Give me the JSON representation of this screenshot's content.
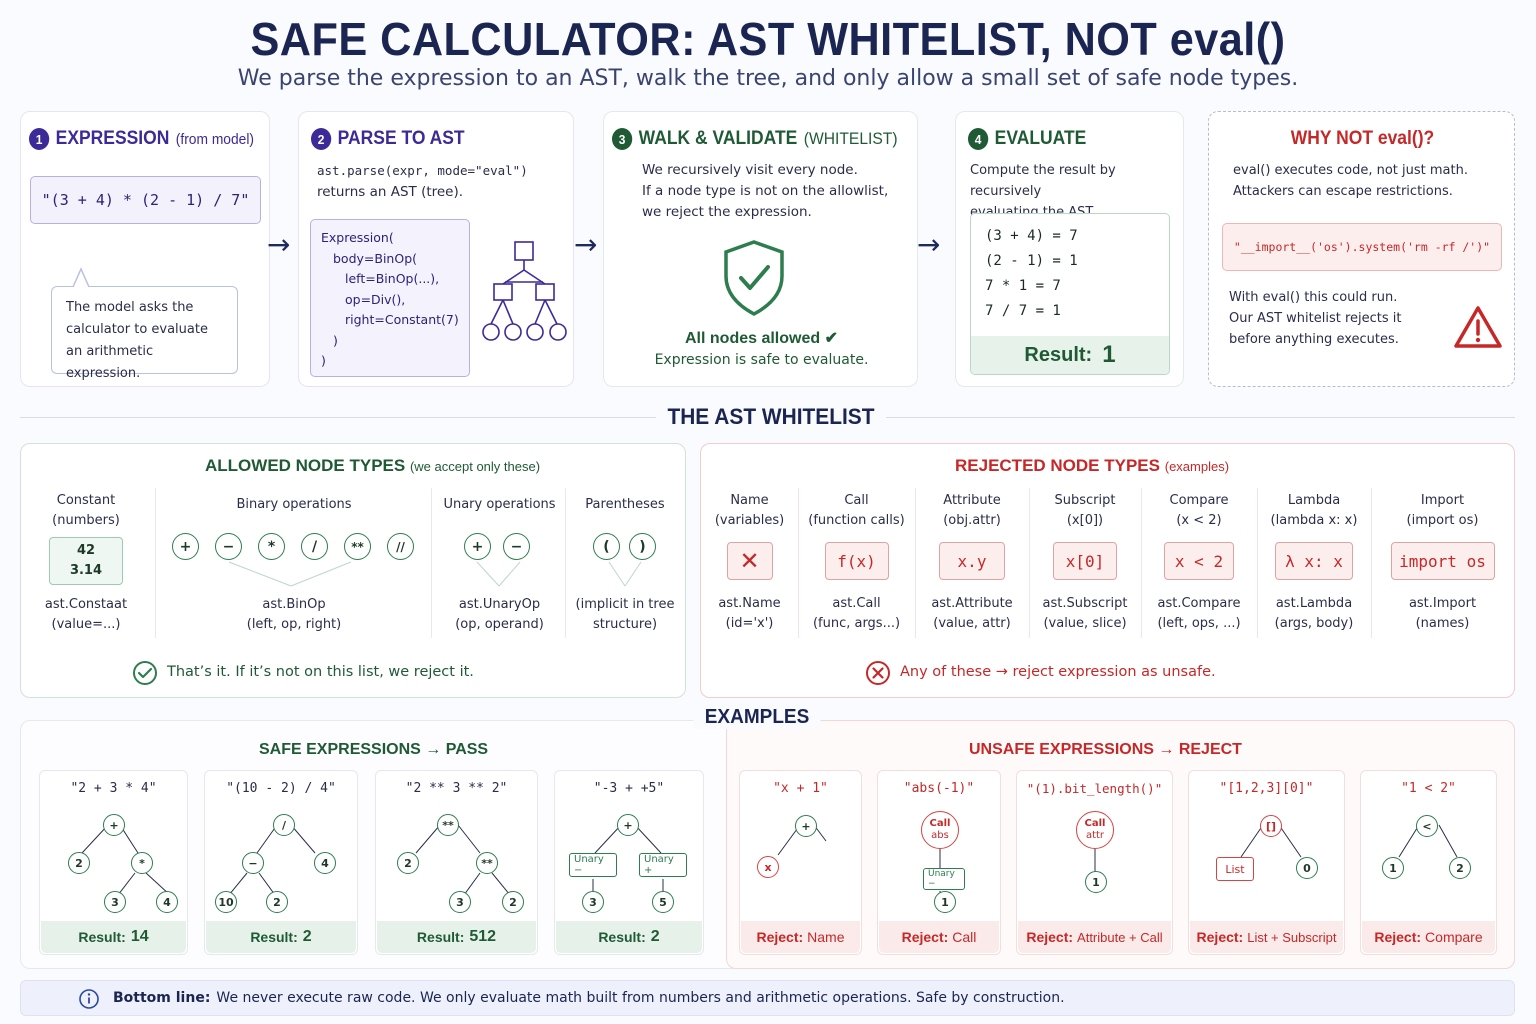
{
  "header": {
    "title": "SAFE CALCULATOR: AST WHITELIST, NOT eval()",
    "subtitle": "We parse the expression to an AST, walk the tree, and only allow a small set of safe node types."
  },
  "colors": {
    "navy": "#1b2552",
    "green": "#2e7d4f",
    "red": "#c62828",
    "purple": "#3c2a98"
  },
  "steps": [
    {
      "num": "1",
      "title": "EXPRESSION",
      "sub": "(from model)",
      "code": "\"(3 + 4) * (2 - 1) / 7\"",
      "note": [
        "The model asks the",
        "calculator to evaluate",
        "an arithmetic expression."
      ]
    },
    {
      "num": "2",
      "title": "PARSE TO AST",
      "line1": "ast.parse(expr, mode=\"eval\")",
      "line2": "returns an AST (tree).",
      "tree": [
        "Expression(",
        "body=BinOp(",
        "left=BinOp(...),",
        "op=Div(),",
        "right=Constant(7)",
        ")",
        ")"
      ]
    },
    {
      "num": "3",
      "title": "WALK & VALIDATE",
      "sub": "(WHITELIST)",
      "lines": [
        "We recursively visit every node.",
        "If a node type is not on the allowlist,",
        "we reject the expression."
      ],
      "ok": "All nodes allowed ✔",
      "ok2": "Expression is safe to evaluate.",
      "icon": "shield-check-icon"
    },
    {
      "num": "4",
      "title": "EVALUATE",
      "lines": [
        "Compute the result by recursively",
        "evaluating the AST."
      ],
      "calc": [
        "(3 + 4) = 7",
        "(2 - 1) = 1",
        "7 * 1 = 7",
        "7 / 7 = 1"
      ],
      "result_label": "Result:",
      "result_value": "1"
    }
  ],
  "why": {
    "title": "WHY NOT eval()?",
    "lines": [
      "eval() executes code, not just math.",
      "Attackers can escape restrictions."
    ],
    "code": "\"__import__('os').system('rm -rf /')\"",
    "lines2": [
      "With eval() this could run.",
      "Our AST whitelist rejects it",
      "before anything executes."
    ]
  },
  "whitelist_title": "THE AST WHITELIST",
  "allowed": {
    "title": "ALLOWED NODE TYPES",
    "sub": "(we accept only these)",
    "constant": {
      "h1": "Constant",
      "h2": "(numbers)",
      "v1": "42",
      "v2": "3.14",
      "f1": "ast.Constaat",
      "f2": "(value=...)"
    },
    "binary": {
      "h1": "Binary operations",
      "ops": [
        "+",
        "−",
        "*",
        "/",
        "**",
        "//"
      ],
      "f1": "ast.BinOp",
      "f2": "(left, op, right)"
    },
    "unary": {
      "h1": "Unary operations",
      "ops": [
        "+",
        "−"
      ],
      "f1": "ast.UnaryOp",
      "f2": "(op, operand)"
    },
    "paren": {
      "h1": "Parentheses",
      "ops": [
        "(",
        ")"
      ],
      "f1": "(implicit in tree",
      "f2": "structure)"
    },
    "footer": "That’s it. If it’s not on this list, we reject it."
  },
  "rejected": {
    "title": "REJECTED NODE TYPES",
    "sub": "(examples)",
    "items": [
      {
        "h1": "Name",
        "h2": "(variables)",
        "box": "✕",
        "f1": "ast.Name",
        "f2": "(id='x')"
      },
      {
        "h1": "Call",
        "h2": "(function calls)",
        "box": "f(x)",
        "f1": "ast.Call",
        "f2": "(func, args...)"
      },
      {
        "h1": "Attribute",
        "h2": "(obj.attr)",
        "box": "x.y",
        "f1": "ast.Attribute",
        "f2": "(value, attr)"
      },
      {
        "h1": "Subscript",
        "h2": "(x[0])",
        "box": "x[0]",
        "f1": "ast.Subscript",
        "f2": "(value, slice)"
      },
      {
        "h1": "Compare",
        "h2": "(x < 2)",
        "box": "x < 2",
        "f1": "ast.Compare",
        "f2": "(left, ops, ...)"
      },
      {
        "h1": "Lambda",
        "h2": "(lambda x: x)",
        "box": "λ x: x",
        "f1": "ast.Lambda",
        "f2": "(args, body)"
      },
      {
        "h1": "Import",
        "h2": "(import os)",
        "box": "import os",
        "f1": "ast.Import",
        "f2": "(names)"
      }
    ],
    "footer": "Any of these → reject expression as unsafe."
  },
  "examples_title": "EXAMPLES",
  "safe": {
    "title": "SAFE EXPRESSIONS → PASS",
    "items": [
      {
        "expr": "\"2 + 3 * 4\"",
        "label": "Result:",
        "value": "14"
      },
      {
        "expr": "\"(10 - 2) / 4\"",
        "label": "Result:",
        "value": "2"
      },
      {
        "expr": "\"2 ** 3 ** 2\"",
        "label": "Result:",
        "value": "512"
      },
      {
        "expr": "\"-3 + +5\"",
        "label": "Result:",
        "value": "2"
      }
    ]
  },
  "unsafe": {
    "title": "UNSAFE EXPRESSIONS → REJECT",
    "items": [
      {
        "expr": "\"x + 1\"",
        "label": "Reject:",
        "value": "Name"
      },
      {
        "expr": "\"abs(-1)\"",
        "label": "Reject:",
        "value": "Call"
      },
      {
        "expr": "\"(1).bit_length()\"",
        "label": "Reject:",
        "value": "Attribute + Call"
      },
      {
        "expr": "\"[1,2,3][0]\"",
        "label": "Reject:",
        "value": "List + Subscript"
      },
      {
        "expr": "\"1 < 2\"",
        "label": "Reject:",
        "value": "Compare"
      }
    ]
  },
  "bottom": {
    "label": "Bottom line:",
    "text": "We never execute raw code. We only evaluate math built from numbers and arithmetic operations. Safe by construction."
  }
}
